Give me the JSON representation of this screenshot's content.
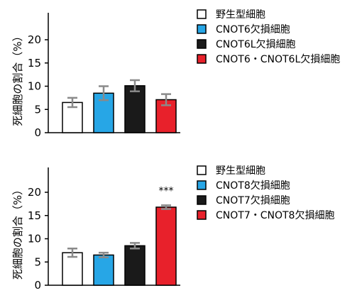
{
  "chart_data": [
    {
      "type": "bar",
      "ylabel": "死細胞の割合（%）",
      "ylim": [
        0,
        25
      ],
      "yticks": [
        0,
        5,
        10,
        15,
        20
      ],
      "categories": [
        "野生型細胞",
        "CNOT6欠損細胞",
        "CNOT6L欠損細胞",
        "CNOT6・CNOT6L欠損細胞"
      ],
      "values": [
        6.5,
        8.5,
        10.1,
        7.1
      ],
      "errors": [
        1.0,
        1.5,
        1.2,
        1.2
      ],
      "colors": [
        "#ffffff",
        "#27a6e6",
        "#1a1a1a",
        "#e8212b"
      ],
      "legend": [
        "野生型細胞",
        "CNOT6欠損細胞",
        "CNOT6L欠損細胞",
        "CNOT6・CNOT6L欠損細胞"
      ],
      "annotations": []
    },
    {
      "type": "bar",
      "ylabel": "死細胞の割合（%）",
      "ylim": [
        0,
        25
      ],
      "yticks": [
        0,
        5,
        10,
        15,
        20
      ],
      "categories": [
        "野生型細胞",
        "CNOT8欠損細胞",
        "CNOT7欠損細胞",
        "CNOT7・CNOT8欠損細胞"
      ],
      "values": [
        7.0,
        6.5,
        8.5,
        16.8
      ],
      "errors": [
        0.9,
        0.5,
        0.6,
        0.4
      ],
      "colors": [
        "#ffffff",
        "#27a6e6",
        "#1a1a1a",
        "#e8212b"
      ],
      "legend": [
        "野生型細胞",
        "CNOT8欠損細胞",
        "CNOT7欠損細胞",
        "CNOT7・CNOT8欠損細胞"
      ],
      "annotations": [
        {
          "text": "***",
          "category": 3
        }
      ]
    }
  ]
}
